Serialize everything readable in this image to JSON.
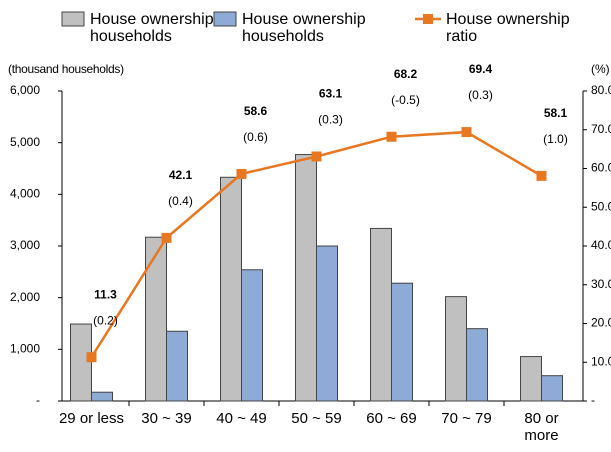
{
  "chart_data": {
    "type": "bar_line",
    "categories": [
      "29 or less",
      "30 ~ 39",
      "40 ~ 49",
      "50 ~ 59",
      "60 ~ 69",
      "70 ~ 79",
      "80 or more"
    ],
    "series": [
      {
        "name": "House ownership households",
        "color": "#c0c0c0",
        "type": "bar",
        "values": [
          1490,
          3170,
          4330,
          4770,
          3340,
          2020,
          860
        ]
      },
      {
        "name": "House ownership households",
        "color": "#8eaad6",
        "type": "bar",
        "values": [
          170,
          1350,
          2540,
          3000,
          2280,
          1400,
          490
        ]
      },
      {
        "name": "House ownership ratio",
        "color": "#e87722",
        "type": "line",
        "axis": "y2",
        "values": [
          11.3,
          42.1,
          58.6,
          63.1,
          68.2,
          69.4,
          58.1
        ],
        "change_labels": [
          "(0.2)",
          "(0.4)",
          "(0.6)",
          "(0.3)",
          "(-0.5)",
          "(0.3)",
          "(1.0)"
        ]
      }
    ],
    "ylabel": "(thousand households)",
    "y2label": "(%)",
    "ylim": [
      0,
      6000
    ],
    "yticks": [
      {
        "value": 0,
        "label": "-"
      },
      {
        "value": 1000,
        "label": "1,000"
      },
      {
        "value": 2000,
        "label": "2,000"
      },
      {
        "value": 3000,
        "label": "3,000"
      },
      {
        "value": 4000,
        "label": "4,000"
      },
      {
        "value": 5000,
        "label": "5,000"
      },
      {
        "value": 6000,
        "label": "6,000"
      }
    ],
    "y2lim": [
      0,
      80
    ],
    "y2ticks": [
      {
        "value": 0,
        "label": "-"
      },
      {
        "value": 10,
        "label": "10.0"
      },
      {
        "value": 20,
        "label": "20.0"
      },
      {
        "value": 30,
        "label": "30.0"
      },
      {
        "value": 40,
        "label": "40.0"
      },
      {
        "value": 50,
        "label": "50.0"
      },
      {
        "value": 60,
        "label": "60.0"
      },
      {
        "value": 70,
        "label": "70.0"
      },
      {
        "value": 80,
        "label": "80.0"
      }
    ],
    "grid": false,
    "legend": "top"
  }
}
